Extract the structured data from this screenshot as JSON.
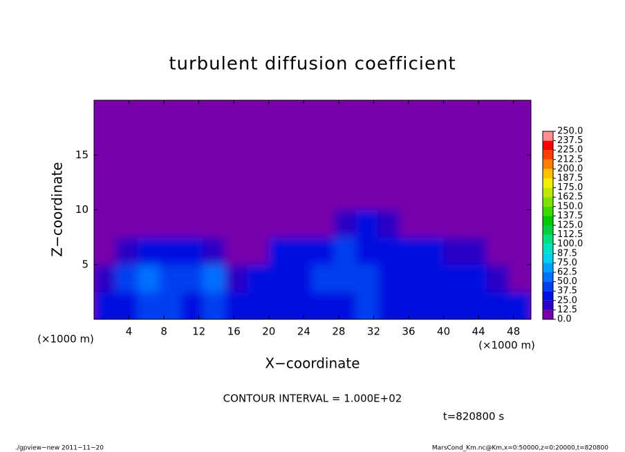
{
  "chart_data": {
    "type": "heatmap",
    "title": "turbulent diffusion coefficient",
    "xlabel": "X−coordinate",
    "ylabel": "Z−coordinate",
    "xunit": "(×1000 m)",
    "yunit": "(×1000 m)",
    "xlim": [
      0,
      50
    ],
    "ylim": [
      0,
      20
    ],
    "xticks": [
      4,
      8,
      12,
      16,
      20,
      24,
      28,
      32,
      36,
      40,
      44,
      48
    ],
    "yticks": [
      5,
      10,
      15
    ],
    "x_bins": [
      0,
      2.5,
      5,
      7.5,
      10,
      12.5,
      15,
      17.5,
      20,
      22.5,
      25,
      27.5,
      30,
      32.5,
      35,
      37.5,
      40,
      42.5,
      45,
      47.5,
      50
    ],
    "y_bins": [
      0,
      2.5,
      5,
      7.5,
      10,
      12.5,
      15,
      17.5,
      20
    ],
    "z": [
      [
        30,
        35,
        45,
        40,
        35,
        40,
        30,
        25,
        30,
        35,
        30,
        35,
        40,
        35,
        30,
        30,
        35,
        30,
        25,
        30
      ],
      [
        15,
        40,
        50,
        45,
        45,
        50,
        20,
        25,
        35,
        35,
        40,
        45,
        40,
        35,
        35,
        35,
        30,
        25,
        20,
        10
      ],
      [
        0,
        20,
        35,
        30,
        30,
        15,
        0,
        5,
        25,
        30,
        35,
        40,
        35,
        35,
        30,
        25,
        20,
        15,
        5,
        0
      ],
      [
        0,
        0,
        0,
        0,
        0,
        0,
        0,
        0,
        0,
        5,
        10,
        20,
        25,
        20,
        0,
        0,
        0,
        0,
        0,
        0
      ],
      [
        0,
        0,
        0,
        0,
        0,
        0,
        0,
        0,
        0,
        0,
        0,
        0,
        0,
        0,
        0,
        0,
        0,
        0,
        0,
        0
      ],
      [
        0,
        0,
        0,
        0,
        0,
        0,
        0,
        0,
        0,
        0,
        0,
        0,
        0,
        0,
        0,
        0,
        0,
        0,
        0,
        0
      ],
      [
        0,
        0,
        0,
        0,
        0,
        0,
        0,
        0,
        0,
        0,
        0,
        0,
        0,
        0,
        0,
        0,
        0,
        0,
        0,
        0
      ],
      [
        0,
        0,
        0,
        0,
        0,
        0,
        0,
        0,
        0,
        0,
        0,
        0,
        0,
        0,
        0,
        0,
        0,
        0,
        0,
        0
      ]
    ],
    "colorbar": {
      "levels": [
        {
          "value": 0,
          "label": "0.0"
        },
        {
          "value": 12.5,
          "label": "12.5"
        },
        {
          "value": 25,
          "label": "25.0"
        },
        {
          "value": 37.5,
          "label": "37.5"
        },
        {
          "value": 50,
          "label": "50.0"
        },
        {
          "value": 62.5,
          "label": "62.5"
        },
        {
          "value": 75,
          "label": "75.0"
        },
        {
          "value": 87.5,
          "label": "87.5"
        },
        {
          "value": 100,
          "label": "100.0"
        },
        {
          "value": 112.5,
          "label": "112.5"
        },
        {
          "value": 125,
          "label": "125.0"
        },
        {
          "value": 137.5,
          "label": "137.5"
        },
        {
          "value": 150,
          "label": "150.0"
        },
        {
          "value": 162.5,
          "label": "162.5"
        },
        {
          "value": 175,
          "label": "175.0"
        },
        {
          "value": 187.5,
          "label": "187.5"
        },
        {
          "value": 200,
          "label": "200.0"
        },
        {
          "value": 212.5,
          "label": "212.5"
        },
        {
          "value": 225,
          "label": "225.0"
        },
        {
          "value": 237.5,
          "label": "237.5"
        },
        {
          "value": 250,
          "label": "250.0"
        }
      ],
      "colors": [
        "#7800aa",
        "#2a00c4",
        "#0010e0",
        "#0040f0",
        "#0070ff",
        "#00a0ff",
        "#00d0f0",
        "#00e0c0",
        "#00e080",
        "#00d040",
        "#00c800",
        "#40d800",
        "#80e000",
        "#c0e800",
        "#f0f000",
        "#ffc000",
        "#ff8000",
        "#ff4000",
        "#ff0000",
        "#ff9090"
      ]
    },
    "annotations": {
      "contour_interval": "CONTOUR INTERVAL = 1.000E+02",
      "time": "t=820800 s"
    },
    "footer": [
      "./gpview−new   2011−11−20",
      "MarsCond_Km.nc@Km,x=0:50000,z=0:20000,t=820800"
    ]
  }
}
